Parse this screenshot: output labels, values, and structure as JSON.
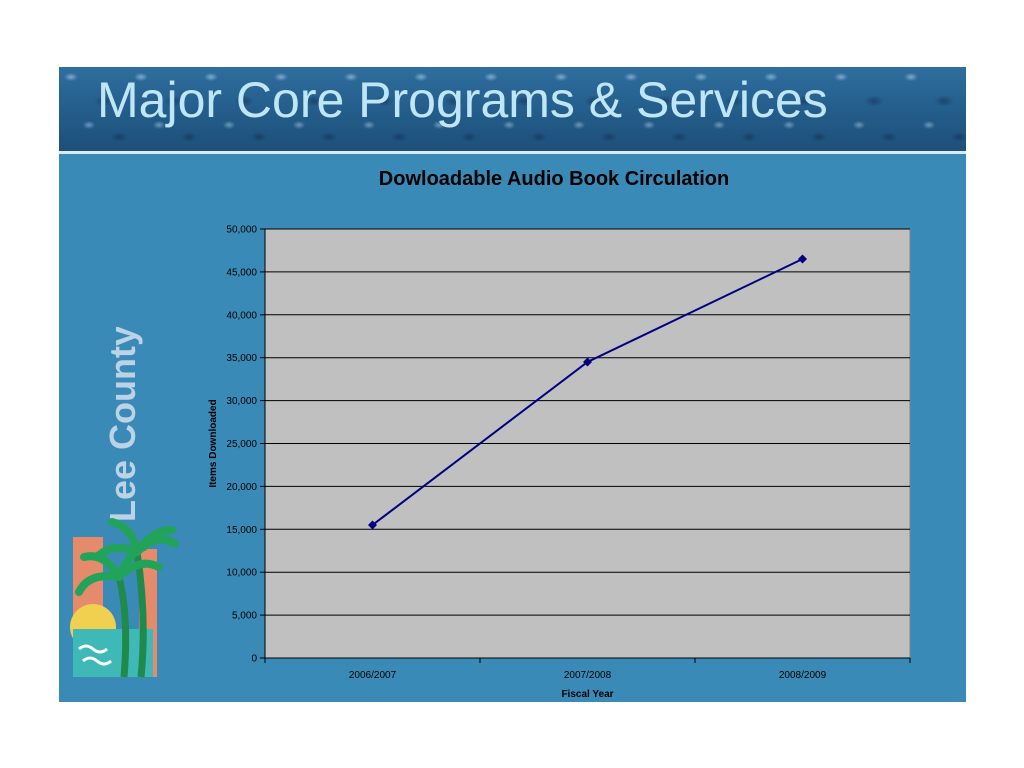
{
  "slide": {
    "title": "Major Core Programs & Services",
    "logo_text": "Lee County"
  },
  "colors": {
    "slide_background": "#3a8ab8",
    "plot_background": "#c0c0c0",
    "series_line": "#000080",
    "title_text": "#bfe6f7"
  },
  "chart_data": {
    "type": "line",
    "title": "Dowloadable Audio Book Circulation",
    "xlabel": "Fiscal Year",
    "ylabel": "Items Downloaded",
    "categories": [
      "2006/2007",
      "2007/2008",
      "2008/2009"
    ],
    "series": [
      {
        "values": [
          15500,
          34500,
          46500
        ]
      }
    ],
    "ylim": [
      0,
      50000
    ],
    "yticks": [
      0,
      5000,
      10000,
      15000,
      20000,
      25000,
      30000,
      35000,
      40000,
      45000,
      50000
    ],
    "ytick_labels": [
      "0",
      "5,000",
      "10,000",
      "15,000",
      "20,000",
      "25,000",
      "30,000",
      "35,000",
      "40,000",
      "45,000",
      "50,000"
    ],
    "grid": true,
    "legend": "none"
  }
}
